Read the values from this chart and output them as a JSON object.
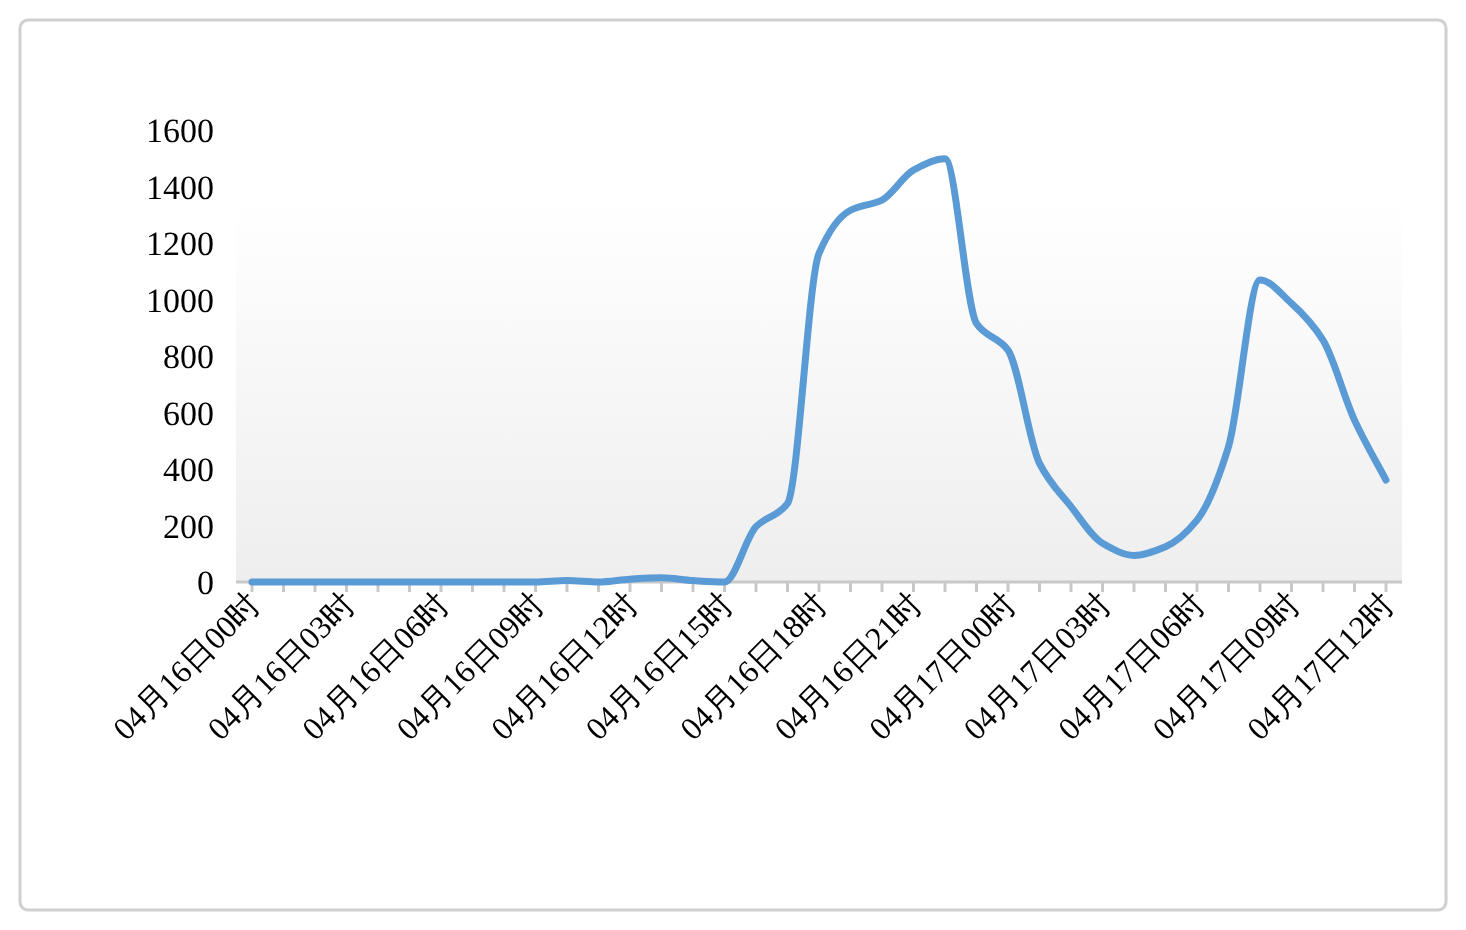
{
  "chart_data": {
    "type": "line",
    "categories": [
      "04月16日00时",
      null,
      null,
      "04月16日03时",
      null,
      null,
      "04月16日06时",
      null,
      null,
      "04月16日09时",
      null,
      null,
      "04月16日12时",
      null,
      null,
      "04月16日15时",
      null,
      null,
      "04月16日18时",
      null,
      null,
      "04月16日21时",
      null,
      null,
      "04月17日00时",
      null,
      null,
      "04月17日03时",
      null,
      null,
      "04月17日06时",
      null,
      null,
      "04月17日09时",
      null,
      null,
      "04月17日12时"
    ],
    "series": [
      {
        "color": "#5b9bd5",
        "values": [
          0,
          0,
          0,
          0,
          0,
          0,
          0,
          0,
          0,
          0,
          5,
          0,
          10,
          15,
          5,
          0,
          196,
          278,
          1163,
          1316,
          1352,
          1458,
          1498,
          915,
          821,
          420,
          267,
          137,
          94,
          125,
          219,
          479,
          1069,
          986,
          856,
          573,
          361
        ]
      }
    ],
    "ylim": [
      0,
      1600
    ],
    "yticks": [
      0,
      200,
      400,
      600,
      800,
      1000,
      1200,
      1400,
      1600
    ],
    "marker": "none",
    "line_style": "solid",
    "grid": false
  }
}
